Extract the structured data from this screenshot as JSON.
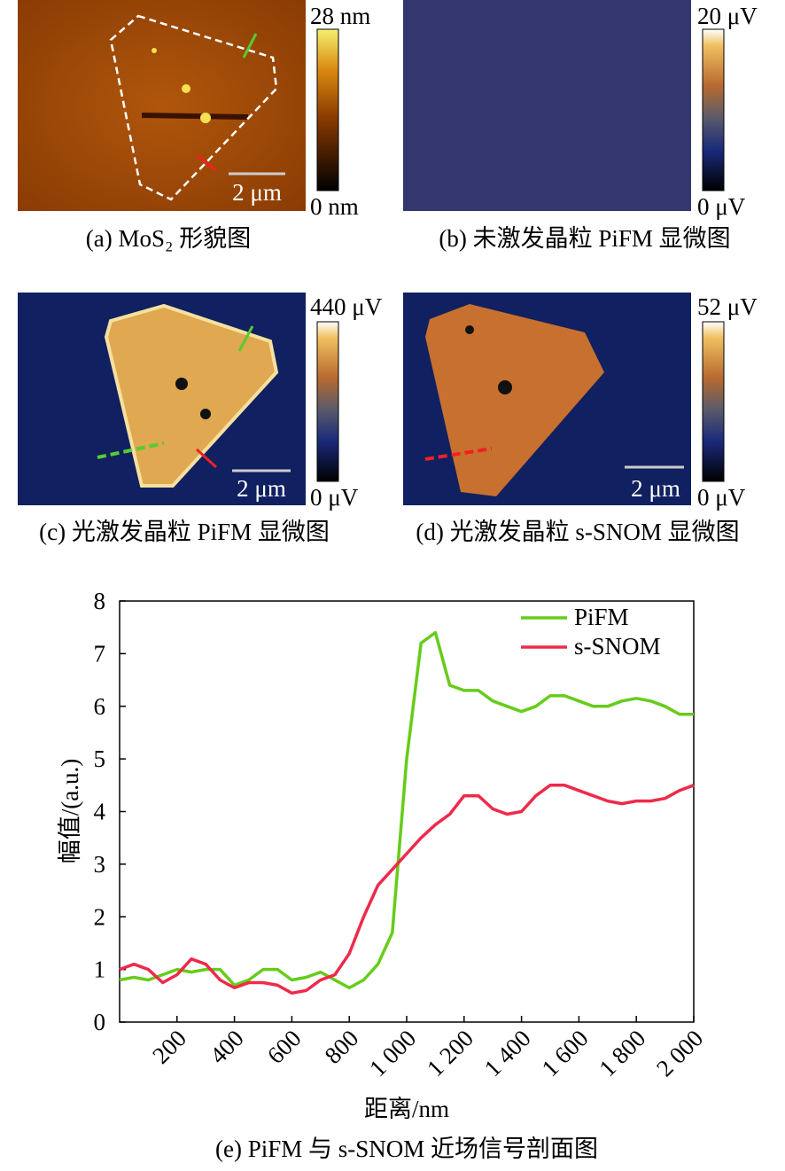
{
  "panels": [
    {
      "caption": "(a) MoS₂ 形貌图",
      "colorbar_max": "28 nm",
      "colorbar_min": "0 nm",
      "scale_bar": "2 μm"
    },
    {
      "caption": "(b) 未激发晶粒 PiFM 显微图",
      "colorbar_max": "20 μV",
      "colorbar_min": "0 μV"
    },
    {
      "caption": "(c) 光激发晶粒 PiFM 显微图",
      "colorbar_max": "440 μV",
      "colorbar_min": "0 μV",
      "scale_bar": "2 μm"
    },
    {
      "caption": "(d) 光激发晶粒 s-SNOM 显微图",
      "colorbar_max": "52 μV",
      "colorbar_min": "0 μV",
      "scale_bar": "2 μm"
    }
  ],
  "chart_data": {
    "type": "line",
    "caption": "(e) PiFM 与 s-SNOM 近场信号剖面图",
    "x_label": "距离/nm",
    "y_label": "幅值/(a.u.)",
    "x": [
      0,
      50,
      100,
      150,
      200,
      250,
      300,
      350,
      400,
      450,
      500,
      550,
      600,
      650,
      700,
      750,
      800,
      850,
      900,
      950,
      1000,
      1050,
      1100,
      1150,
      1200,
      1250,
      1300,
      1350,
      1400,
      1450,
      1500,
      1550,
      1600,
      1650,
      1700,
      1750,
      1800,
      1850,
      1900,
      1950,
      2000
    ],
    "series": [
      {
        "name": "PiFM",
        "color": "#66cc1a",
        "values": [
          0.8,
          0.85,
          0.8,
          0.9,
          1.0,
          0.95,
          1.0,
          1.0,
          0.7,
          0.8,
          1.0,
          1.0,
          0.8,
          0.85,
          0.95,
          0.8,
          0.65,
          0.8,
          1.1,
          1.7,
          5.0,
          7.2,
          7.4,
          6.4,
          6.3,
          6.3,
          6.1,
          6.0,
          5.9,
          6.0,
          6.2,
          6.2,
          6.1,
          6.0,
          6.0,
          6.1,
          6.15,
          6.1,
          6.0,
          5.85,
          5.85
        ]
      },
      {
        "name": "s-SNOM",
        "color": "#ee2a4a",
        "values": [
          1.0,
          1.1,
          1.0,
          0.75,
          0.9,
          1.2,
          1.1,
          0.8,
          0.65,
          0.75,
          0.75,
          0.7,
          0.55,
          0.6,
          0.8,
          0.9,
          1.3,
          2.0,
          2.6,
          2.9,
          3.2,
          3.5,
          3.75,
          3.95,
          4.3,
          4.3,
          4.05,
          3.95,
          4.0,
          4.3,
          4.5,
          4.5,
          4.4,
          4.3,
          4.2,
          4.15,
          4.2,
          4.2,
          4.25,
          4.4,
          4.5
        ]
      }
    ],
    "xlim": [
      0,
      2000
    ],
    "xticks": [
      200,
      400,
      600,
      800,
      {
        "value": 1000,
        "label": "1 000"
      },
      {
        "value": 1200,
        "label": "1 200"
      },
      {
        "value": 1400,
        "label": "1 400"
      },
      {
        "value": 1600,
        "label": "1 600"
      },
      {
        "value": 1800,
        "label": "1 800"
      },
      {
        "value": 2000,
        "label": "2 000"
      }
    ],
    "ylim": [
      0,
      8
    ],
    "yticks": [
      0,
      1,
      2,
      3,
      4,
      5,
      6,
      7,
      8
    ],
    "legend": "upper right"
  }
}
